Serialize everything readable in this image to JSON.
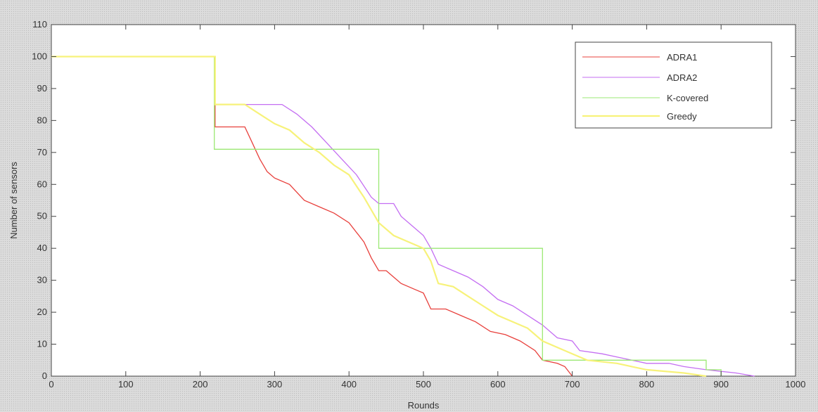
{
  "chart_data": {
    "type": "line",
    "title": "",
    "xlabel": "Rounds",
    "ylabel": "Number of sensors",
    "xlim": [
      0,
      1000
    ],
    "ylim": [
      0,
      110
    ],
    "xticks": [
      0,
      100,
      200,
      300,
      400,
      500,
      600,
      700,
      800,
      900,
      1000
    ],
    "yticks": [
      0,
      10,
      20,
      30,
      40,
      50,
      60,
      70,
      80,
      90,
      100,
      110
    ],
    "grid": false,
    "legend_position": "top-right",
    "series": [
      {
        "name": "ADRA1",
        "color": "#e8403c",
        "points": [
          [
            0,
            100
          ],
          [
            220,
            100
          ],
          [
            220,
            78
          ],
          [
            260,
            78
          ],
          [
            270,
            73
          ],
          [
            280,
            68
          ],
          [
            290,
            64
          ],
          [
            300,
            62
          ],
          [
            320,
            60
          ],
          [
            340,
            55
          ],
          [
            360,
            53
          ],
          [
            380,
            51
          ],
          [
            400,
            48
          ],
          [
            420,
            42
          ],
          [
            430,
            37
          ],
          [
            440,
            33
          ],
          [
            450,
            33
          ],
          [
            460,
            31
          ],
          [
            470,
            29
          ],
          [
            490,
            27
          ],
          [
            500,
            26
          ],
          [
            510,
            21
          ],
          [
            530,
            21
          ],
          [
            550,
            19
          ],
          [
            570,
            17
          ],
          [
            590,
            14
          ],
          [
            610,
            13
          ],
          [
            630,
            11
          ],
          [
            650,
            8
          ],
          [
            660,
            5
          ],
          [
            680,
            4
          ],
          [
            690,
            3
          ],
          [
            700,
            0
          ]
        ]
      },
      {
        "name": "ADRA2",
        "color": "#c46ef2",
        "points": [
          [
            0,
            100
          ],
          [
            220,
            100
          ],
          [
            220,
            85
          ],
          [
            310,
            85
          ],
          [
            330,
            82
          ],
          [
            350,
            78
          ],
          [
            370,
            73
          ],
          [
            390,
            68
          ],
          [
            410,
            63
          ],
          [
            430,
            56
          ],
          [
            440,
            54
          ],
          [
            460,
            54
          ],
          [
            470,
            50
          ],
          [
            490,
            46
          ],
          [
            500,
            44
          ],
          [
            510,
            40
          ],
          [
            520,
            35
          ],
          [
            540,
            33
          ],
          [
            560,
            31
          ],
          [
            580,
            28
          ],
          [
            600,
            24
          ],
          [
            620,
            22
          ],
          [
            640,
            19
          ],
          [
            660,
            16
          ],
          [
            680,
            12
          ],
          [
            700,
            11
          ],
          [
            710,
            8
          ],
          [
            740,
            7
          ],
          [
            760,
            6
          ],
          [
            780,
            5
          ],
          [
            800,
            4
          ],
          [
            830,
            4
          ],
          [
            850,
            3
          ],
          [
            880,
            2
          ],
          [
            920,
            1
          ],
          [
            945,
            0
          ]
        ]
      },
      {
        "name": "K-covered",
        "color": "#9be874",
        "points": [
          [
            0,
            100
          ],
          [
            219,
            100
          ],
          [
            219,
            71
          ],
          [
            440,
            71
          ],
          [
            440,
            40
          ],
          [
            660,
            40
          ],
          [
            660,
            5
          ],
          [
            880,
            5
          ],
          [
            880,
            2
          ],
          [
            900,
            2
          ],
          [
            900,
            0
          ]
        ]
      },
      {
        "name": "Greedy",
        "color": "#f7f27a",
        "points": [
          [
            0,
            100
          ],
          [
            220,
            100
          ],
          [
            220,
            85
          ],
          [
            260,
            85
          ],
          [
            280,
            82
          ],
          [
            300,
            79
          ],
          [
            320,
            77
          ],
          [
            340,
            73
          ],
          [
            360,
            70
          ],
          [
            380,
            66
          ],
          [
            400,
            63
          ],
          [
            420,
            56
          ],
          [
            440,
            48
          ],
          [
            460,
            44
          ],
          [
            480,
            42
          ],
          [
            500,
            40
          ],
          [
            510,
            36
          ],
          [
            520,
            29
          ],
          [
            540,
            28
          ],
          [
            560,
            25
          ],
          [
            580,
            22
          ],
          [
            600,
            19
          ],
          [
            620,
            17
          ],
          [
            640,
            15
          ],
          [
            660,
            11
          ],
          [
            680,
            9
          ],
          [
            700,
            7
          ],
          [
            720,
            5
          ],
          [
            760,
            4
          ],
          [
            780,
            3
          ],
          [
            800,
            2
          ],
          [
            850,
            1
          ],
          [
            880,
            0
          ]
        ]
      }
    ]
  }
}
